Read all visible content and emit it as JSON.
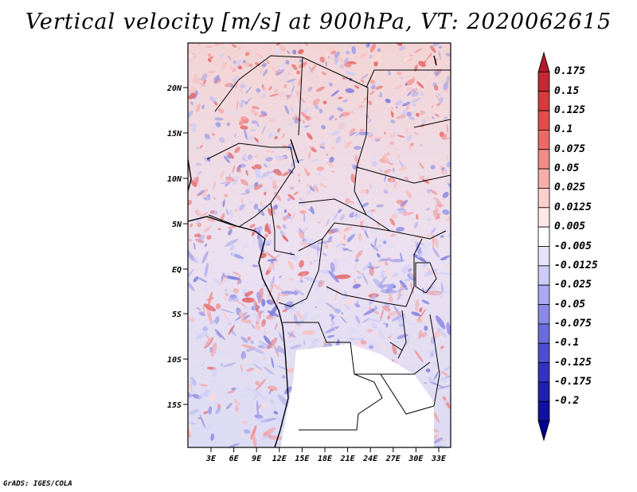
{
  "title": "Vertical velocity [m/s] at 900hPa, VT: 2020062615",
  "credit": "GrADS: IGES/COLA",
  "map": {
    "variable": "Vertical velocity",
    "units": "m/s",
    "level": "900hPa",
    "valid_time": "2020062615",
    "lat_labels": [
      "20N",
      "15N",
      "10N",
      "5N",
      "EQ",
      "5S",
      "10S",
      "15S"
    ],
    "lon_labels": [
      "3E",
      "6E",
      "9E",
      "12E",
      "15E",
      "18E",
      "21E",
      "24E",
      "27E",
      "30E",
      "33E"
    ]
  },
  "colorbar": {
    "levels": [
      "0.175",
      "0.15",
      "0.125",
      "0.1",
      "0.075",
      "0.05",
      "0.025",
      "0.0125",
      "0.005",
      "-0.005",
      "-0.0125",
      "-0.025",
      "-0.05",
      "-0.075",
      "-0.1",
      "-0.125",
      "-0.175",
      "-0.2"
    ],
    "colors": [
      "#b2182b",
      "#c32a33",
      "#d33c3c",
      "#e04e4a",
      "#ea6b66",
      "#f18c87",
      "#f6aeaa",
      "#fbd0cd",
      "#fde8e6",
      "#ffffff",
      "#e4e4fb",
      "#ccccf6",
      "#a9a9ef",
      "#8a8ae6",
      "#6b6bdb",
      "#4d4dcf",
      "#3333c0",
      "#2020b0",
      "#1010a0",
      "#000090"
    ]
  }
}
